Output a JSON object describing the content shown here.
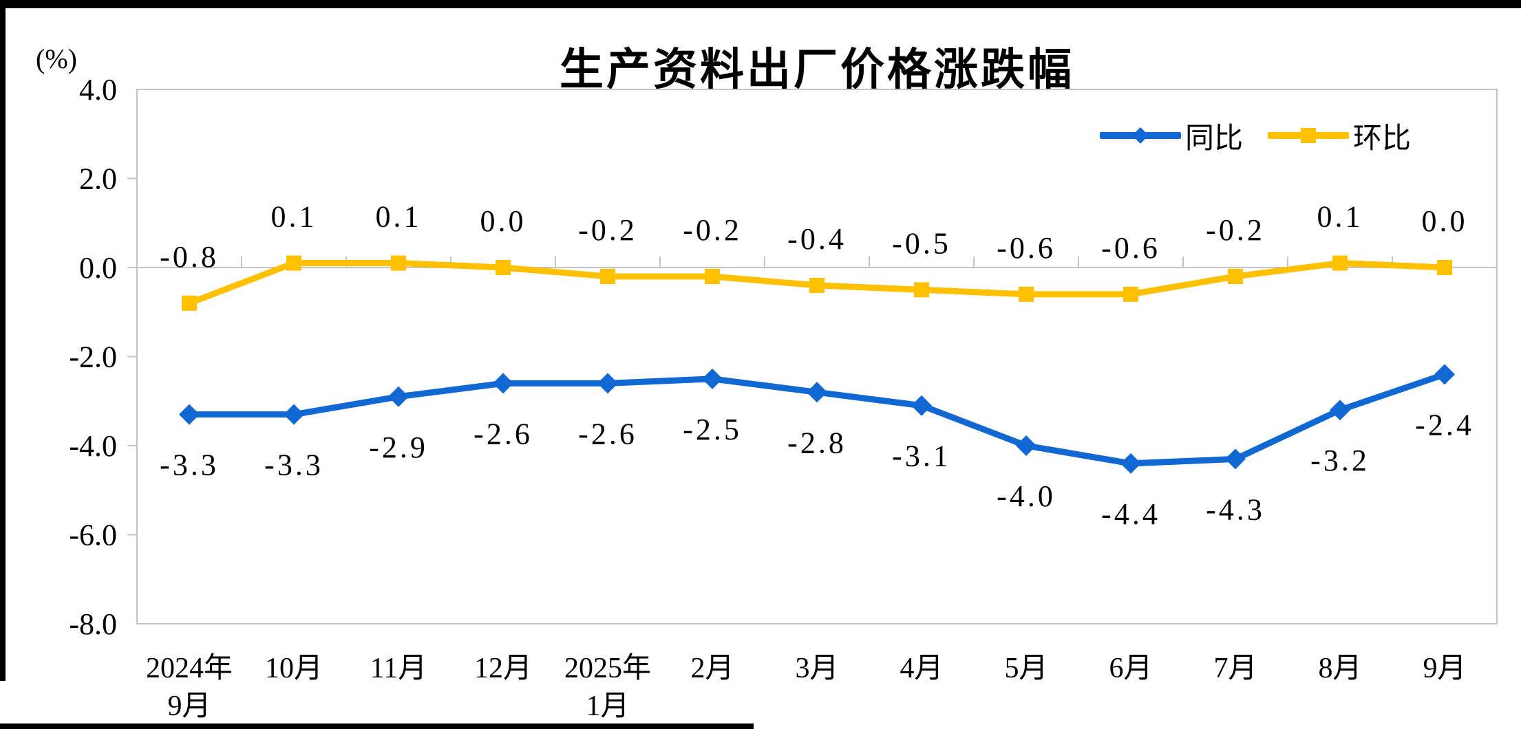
{
  "chart_data": {
    "type": "line",
    "title": "生产资料出厂价格涨跌幅",
    "unit_label": "(%)",
    "categories": [
      [
        "2024年",
        "9月"
      ],
      [
        "10月"
      ],
      [
        "11月"
      ],
      [
        "12月"
      ],
      [
        "2025年",
        "1月"
      ],
      [
        "2月"
      ],
      [
        "3月"
      ],
      [
        "4月"
      ],
      [
        "5月"
      ],
      [
        "6月"
      ],
      [
        "7月"
      ],
      [
        "8月"
      ],
      [
        "9月"
      ]
    ],
    "series": [
      {
        "name": "同比",
        "marker": "diamond",
        "color": "#1168d3",
        "label_position": "below",
        "values": [
          -3.3,
          -3.3,
          -2.9,
          -2.6,
          -2.6,
          -2.5,
          -2.8,
          -3.1,
          -4.0,
          -4.4,
          -4.3,
          -3.2,
          -2.4
        ],
        "labels": [
          "-3.3",
          "-3.3",
          "-2.9",
          "-2.6",
          "-2.6",
          "-2.5",
          "-2.8",
          "-3.1",
          "-4.0",
          "-4.4",
          "-4.3",
          "-3.2",
          "-2.4"
        ]
      },
      {
        "name": "环比",
        "marker": "square",
        "color": "#ffc000",
        "label_position": "above",
        "values": [
          -0.8,
          0.1,
          0.1,
          0.0,
          -0.2,
          -0.2,
          -0.4,
          -0.5,
          -0.6,
          -0.6,
          -0.2,
          0.1,
          0.0
        ],
        "labels": [
          "-0.8",
          "0.1",
          "0.1",
          "0.0",
          "-0.2",
          "-0.2",
          "-0.4",
          "-0.5",
          "-0.6",
          "-0.6",
          "-0.2",
          "0.1",
          "0.0"
        ]
      }
    ],
    "y_axis": {
      "tick_labels": [
        "4.0",
        "2.0",
        "0.0",
        "-2.0",
        "-4.0",
        "-6.0",
        "-8.0"
      ],
      "min": -8.0,
      "max": 4.0,
      "step": 2.0
    },
    "axis_color": "#c3c3c3",
    "text_color": "#000000",
    "legend_position": "top-right",
    "grid": "zero-line-only"
  }
}
